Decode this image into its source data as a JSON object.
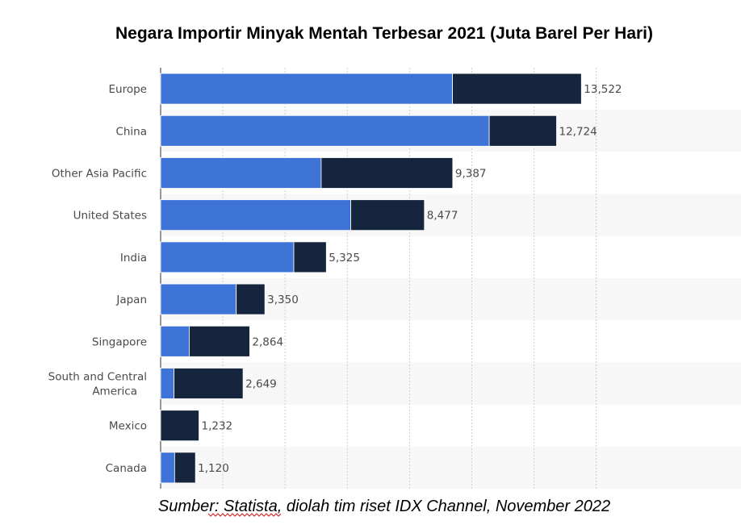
{
  "chart_data": {
    "type": "bar",
    "orientation": "horizontal",
    "stacked": true,
    "title": "Negara Importir Minyak Mentah Terbesar 2021 (Juta Barel Per Hari)",
    "categories": [
      "Europe",
      "China",
      "Other Asia Pacific",
      "United States",
      "India",
      "Japan",
      "Singapore",
      "South and Central America",
      "Mexico",
      "Canada"
    ],
    "category_label_lines": [
      [
        "Europe"
      ],
      [
        "China"
      ],
      [
        "Other Asia Pacific"
      ],
      [
        "United States"
      ],
      [
        "India"
      ],
      [
        "Japan"
      ],
      [
        "Singapore"
      ],
      [
        "South and Central",
        "America"
      ],
      [
        "Mexico"
      ],
      [
        "Canada"
      ]
    ],
    "series": [
      {
        "color": "#3e73d8",
        "values": [
          9380,
          10560,
          5160,
          6110,
          4280,
          2430,
          920,
          430,
          0,
          450
        ]
      },
      {
        "color": "#16253e",
        "values": [
          4142,
          2164,
          4227,
          2367,
          1045,
          920,
          1944,
          2219,
          1232,
          670
        ]
      }
    ],
    "totals": [
      13522,
      12724,
      9387,
      8477,
      5325,
      3350,
      2864,
      2649,
      1232,
      1120
    ],
    "total_labels": [
      "13,522",
      "12,724",
      "9,387",
      "8,477",
      "5,325",
      "3,350",
      "2,864",
      "2,649",
      "1,232",
      "1,120"
    ],
    "xlim": [
      0,
      15000
    ],
    "x_gridlines": [
      0,
      2000,
      4000,
      6000,
      8000,
      10000,
      12000,
      14000
    ],
    "grid": true,
    "legend": "none",
    "colors": {
      "band": "#f7f7f7",
      "grid": "#cfcfcf",
      "axis": "#333333"
    }
  },
  "source_note": {
    "prefix": "Sumber: ",
    "underlined": "Statista",
    "suffix": ", diolah tim riset IDX Channel, November 2022"
  }
}
